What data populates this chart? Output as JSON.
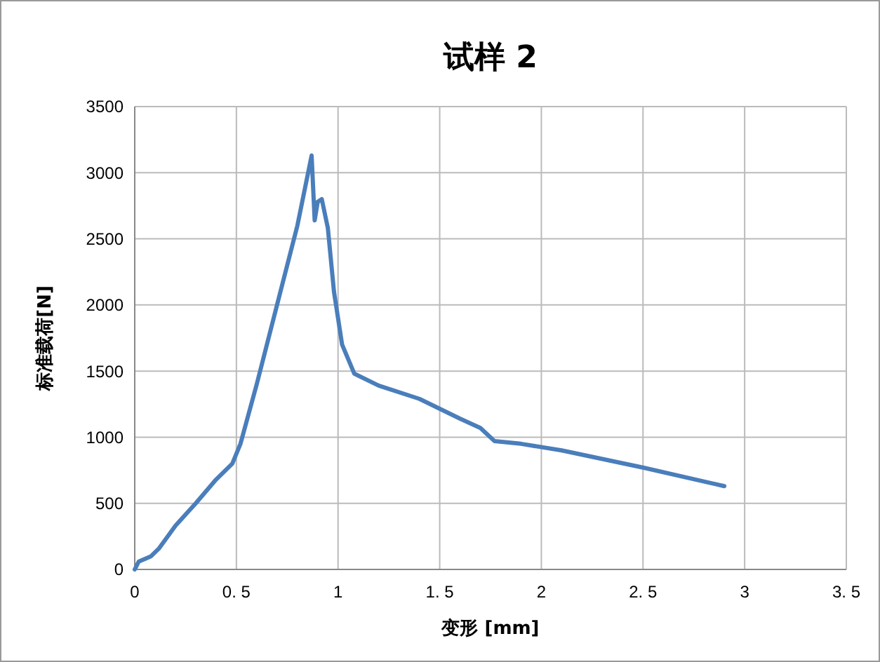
{
  "chart_data": {
    "type": "line",
    "title": "试样 2",
    "xlabel": "变形 [mm]",
    "ylabel": "标准载荷[N]",
    "xlim": [
      0,
      3.5
    ],
    "xticks": [
      0,
      {
        "value": 0.5,
        "label": "0. 5"
      },
      1,
      {
        "value": 1.5,
        "label": "1. 5"
      },
      2,
      {
        "value": 2.5,
        "label": "2. 5"
      },
      3,
      {
        "value": 3.5,
        "label": "3. 5"
      }
    ],
    "ylim": [
      0,
      3500
    ],
    "yticks": [
      0,
      500,
      1000,
      1500,
      2000,
      2500,
      3000,
      3500
    ],
    "grid": true,
    "series": [
      {
        "color": "#4a7ebb",
        "x": [
          0,
          0.02,
          0.08,
          0.12,
          0.2,
          0.3,
          0.4,
          0.48,
          0.52,
          0.6,
          0.7,
          0.8,
          0.87,
          0.885,
          0.9,
          0.92,
          0.95,
          0.98,
          1.02,
          1.08,
          1.2,
          1.4,
          1.6,
          1.7,
          1.77,
          1.9,
          2.1,
          2.5,
          2.9
        ],
        "values": [
          0,
          60,
          100,
          160,
          330,
          500,
          680,
          800,
          950,
          1400,
          2000,
          2600,
          3130,
          2640,
          2780,
          2800,
          2580,
          2100,
          1700,
          1480,
          1390,
          1290,
          1140,
          1070,
          970,
          950,
          900,
          770,
          630
        ]
      }
    ]
  }
}
